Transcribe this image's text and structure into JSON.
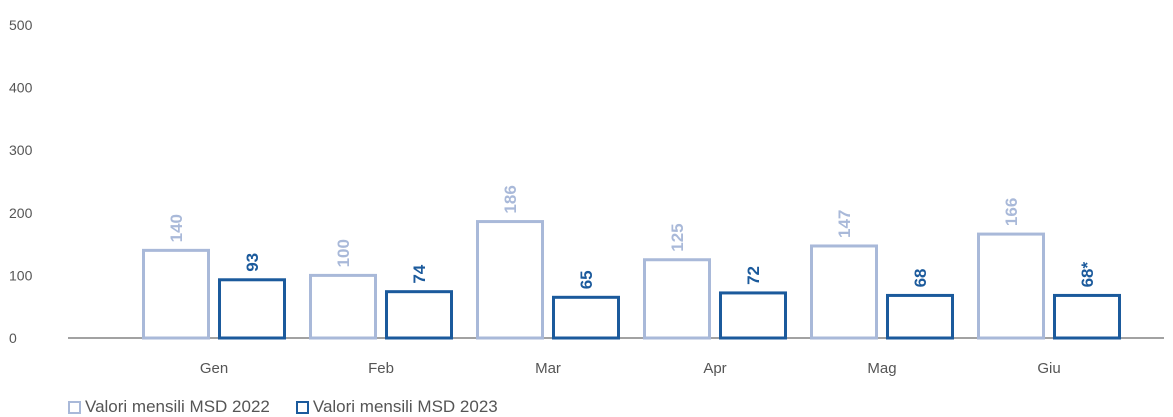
{
  "chart_data": {
    "type": "bar",
    "categories": [
      "Gen",
      "Feb",
      "Mar",
      "Apr",
      "Mag",
      "Giu"
    ],
    "series": [
      {
        "name": "Valori mensili MSD 2022",
        "values": [
          140,
          100,
          186,
          125,
          147,
          166
        ],
        "labels": [
          "140",
          "100",
          "186",
          "125",
          "147",
          "166"
        ],
        "color": "#a9b9d9"
      },
      {
        "name": "Valori mensili MSD 2023",
        "values": [
          93,
          74,
          65,
          72,
          68,
          68
        ],
        "labels": [
          "93",
          "74",
          "65",
          "72",
          "68",
          "68*"
        ],
        "color": "#1b5a9c"
      }
    ],
    "ylim": [
      0,
      500
    ],
    "yticks": [
      0,
      100,
      200,
      300,
      400,
      500
    ],
    "grid": false,
    "legend_position": "bottom-left",
    "title": "",
    "xlabel": "",
    "ylabel": ""
  }
}
